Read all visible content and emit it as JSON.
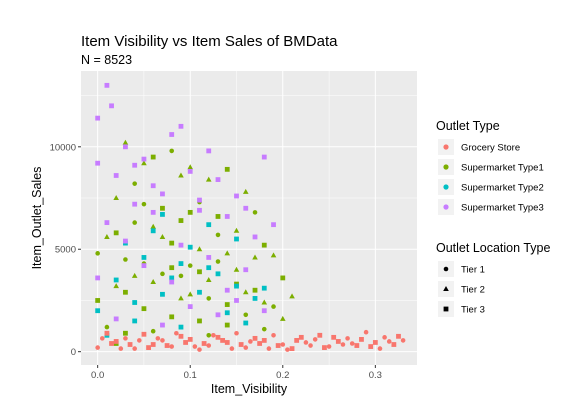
{
  "chart_data": {
    "type": "scatter",
    "title": "Item Visibility vs Item Sales of BMData",
    "subtitle": "N = 8523",
    "xlabel": "Item_Visibility",
    "ylabel": "Item_Outlet_Sales",
    "xlim": [
      -0.018,
      0.345
    ],
    "ylim": [
      -650,
      13700
    ],
    "x_ticks": [
      0.0,
      0.1,
      0.2,
      0.3
    ],
    "x_tick_labels": [
      "0.0",
      "0.1",
      "0.2",
      "0.3"
    ],
    "y_ticks": [
      0,
      5000,
      10000
    ],
    "y_tick_labels": [
      "0",
      "5000",
      "10000"
    ],
    "grid": true,
    "background": "#ebebeb",
    "legend_position": "right",
    "legends": [
      {
        "title": "Outlet Type",
        "kind": "color",
        "entries": [
          {
            "label": "Grocery Store",
            "color": "#F8766D"
          },
          {
            "label": "Supermarket Type1",
            "color": "#7CAE00"
          },
          {
            "label": "Supermarket Type2",
            "color": "#00BFC4"
          },
          {
            "label": "Supermarket Type3",
            "color": "#C77CFF"
          }
        ]
      },
      {
        "title": "Outlet Location Type",
        "kind": "shape",
        "entries": [
          {
            "label": "Tier 1",
            "shape": "circle"
          },
          {
            "label": "Tier 2",
            "shape": "triangle"
          },
          {
            "label": "Tier 3",
            "shape": "square"
          }
        ]
      }
    ],
    "series": [
      {
        "outlet_type": "Supermarket Type1",
        "points": [
          [
            0.02,
            3200,
            2
          ],
          [
            0.03,
            4500,
            1
          ],
          [
            0.05,
            2100,
            3
          ],
          [
            0.06,
            6100,
            2
          ],
          [
            0.07,
            3800,
            1
          ],
          [
            0.08,
            5300,
            3
          ],
          [
            0.09,
            2600,
            2
          ],
          [
            0.1,
            4200,
            1
          ],
          [
            0.11,
            1500,
            3
          ],
          [
            0.12,
            3500,
            2
          ],
          [
            0.13,
            5700,
            1
          ],
          [
            0.14,
            2300,
            3
          ],
          [
            0.15,
            4000,
            2
          ],
          [
            0.16,
            1800,
            1
          ],
          [
            0.17,
            3000,
            3
          ],
          [
            0.18,
            2400,
            2
          ],
          [
            0.01,
            1200,
            1
          ],
          [
            0.03,
            900,
            3
          ],
          [
            0.04,
            3700,
            2
          ],
          [
            0.06,
            1000,
            1
          ],
          [
            0.08,
            1700,
            3
          ],
          [
            0.1,
            2800,
            2
          ],
          [
            0.12,
            800,
            1
          ],
          [
            0.14,
            1300,
            3
          ],
          [
            0.16,
            2900,
            2
          ],
          [
            0.18,
            1100,
            1
          ],
          [
            0.02,
            7500,
            2
          ],
          [
            0.04,
            8200,
            1
          ],
          [
            0.05,
            9200,
            2
          ],
          [
            0.07,
            7000,
            3
          ],
          [
            0.09,
            8600,
            2
          ],
          [
            0.11,
            7300,
            1
          ],
          [
            0.13,
            6600,
            3
          ],
          [
            0.15,
            5900,
            2
          ],
          [
            0.17,
            6800,
            1
          ],
          [
            0.19,
            4700,
            2
          ],
          [
            0.03,
            10200,
            2
          ],
          [
            0.06,
            9500,
            3
          ],
          [
            0.08,
            9800,
            1
          ],
          [
            0.12,
            8400,
            2
          ],
          [
            0.14,
            8900,
            3
          ],
          [
            0.16,
            7800,
            2
          ],
          [
            0.0,
            4800,
            1
          ],
          [
            0.0,
            2500,
            3
          ],
          [
            0.01,
            5600,
            2
          ],
          [
            0.02,
            400,
            3
          ],
          [
            0.05,
            4300,
            1
          ],
          [
            0.09,
            6400,
            3
          ],
          [
            0.11,
            5000,
            2
          ],
          [
            0.13,
            4400,
            1
          ],
          [
            0.15,
            3300,
            3
          ],
          [
            0.17,
            4600,
            2
          ],
          [
            0.19,
            2200,
            1
          ],
          [
            0.2,
            3600,
            3
          ],
          [
            0.21,
            2700,
            2
          ],
          [
            0.07,
            5600,
            2
          ],
          [
            0.1,
            6800,
            3
          ],
          [
            0.04,
            6300,
            1
          ],
          [
            0.06,
            3400,
            2
          ],
          [
            0.08,
            4100,
            3
          ],
          [
            0.12,
            2600,
            1
          ],
          [
            0.14,
            4800,
            2
          ],
          [
            0.18,
            5200,
            3
          ],
          [
            0.2,
            1600,
            2
          ],
          [
            0.03,
            2900,
            3
          ],
          [
            0.05,
            7200,
            1
          ],
          [
            0.1,
            9000,
            2
          ],
          [
            0.02,
            5800,
            3
          ],
          [
            0.09,
            3700,
            1
          ],
          [
            0.11,
            3900,
            3
          ]
        ]
      },
      {
        "outlet_type": "Supermarket Type2",
        "points": [
          [
            0.0,
            2000,
            3
          ],
          [
            0.02,
            3500,
            3
          ],
          [
            0.04,
            1500,
            3
          ],
          [
            0.05,
            4600,
            3
          ],
          [
            0.07,
            2800,
            3
          ],
          [
            0.08,
            3600,
            3
          ],
          [
            0.09,
            1200,
            3
          ],
          [
            0.11,
            2900,
            3
          ],
          [
            0.12,
            4100,
            3
          ],
          [
            0.14,
            1900,
            3
          ],
          [
            0.15,
            3200,
            3
          ],
          [
            0.17,
            2600,
            3
          ],
          [
            0.03,
            5300,
            3
          ],
          [
            0.06,
            5900,
            3
          ],
          [
            0.1,
            5100,
            3
          ],
          [
            0.13,
            3800,
            3
          ],
          [
            0.16,
            1400,
            3
          ],
          [
            0.18,
            3100,
            3
          ],
          [
            0.01,
            800,
            3
          ],
          [
            0.07,
            6700,
            3
          ],
          [
            0.12,
            6200,
            3
          ],
          [
            0.15,
            5500,
            3
          ],
          [
            0.04,
            2400,
            3
          ],
          [
            0.09,
            4300,
            3
          ]
        ]
      },
      {
        "outlet_type": "Supermarket Type3",
        "points": [
          [
            0.0,
            11400,
            3
          ],
          [
            0.01,
            13000,
            3
          ],
          [
            0.015,
            12000,
            3
          ],
          [
            0.03,
            10000,
            3
          ],
          [
            0.05,
            9400,
            3
          ],
          [
            0.08,
            10600,
            3
          ],
          [
            0.1,
            8800,
            3
          ],
          [
            0.09,
            11000,
            3
          ],
          [
            0.13,
            8400,
            3
          ],
          [
            0.15,
            7600,
            3
          ],
          [
            0.18,
            9500,
            3
          ],
          [
            0.12,
            9800,
            3
          ],
          [
            0.02,
            8600,
            3
          ],
          [
            0.0,
            9200,
            3
          ],
          [
            0.06,
            8100,
            3
          ],
          [
            0.04,
            7200,
            3
          ],
          [
            0.07,
            7700,
            3
          ],
          [
            0.11,
            6900,
            3
          ],
          [
            0.14,
            6600,
            3
          ],
          [
            0.16,
            7000,
            3
          ],
          [
            0.19,
            6200,
            3
          ],
          [
            0.17,
            5600,
            3
          ],
          [
            0.01,
            6300,
            3
          ],
          [
            0.03,
            5400,
            3
          ],
          [
            0.05,
            4200,
            3
          ],
          [
            0.08,
            3400,
            3
          ],
          [
            0.1,
            2200,
            3
          ],
          [
            0.12,
            4600,
            3
          ],
          [
            0.14,
            3000,
            3
          ],
          [
            0.16,
            4000,
            3
          ],
          [
            0.18,
            2000,
            3
          ],
          [
            0.02,
            1600,
            3
          ],
          [
            0.0,
            3600,
            3
          ],
          [
            0.07,
            1300,
            3
          ],
          [
            0.09,
            5200,
            3
          ],
          [
            0.13,
            1800,
            3
          ],
          [
            0.15,
            2500,
            3
          ],
          [
            0.11,
            7400,
            3
          ],
          [
            0.06,
            6800,
            3
          ],
          [
            0.04,
            9100,
            3
          ]
        ]
      },
      {
        "outlet_type": "Grocery Store",
        "points": [
          [
            0.0,
            200,
            1
          ],
          [
            0.02,
            500,
            3
          ],
          [
            0.04,
            150,
            1
          ],
          [
            0.06,
            350,
            3
          ],
          [
            0.08,
            250,
            1
          ],
          [
            0.1,
            600,
            3
          ],
          [
            0.12,
            300,
            1
          ],
          [
            0.14,
            450,
            3
          ],
          [
            0.16,
            200,
            1
          ],
          [
            0.18,
            550,
            3
          ],
          [
            0.2,
            350,
            1
          ],
          [
            0.22,
            700,
            3
          ],
          [
            0.23,
            300,
            1
          ],
          [
            0.24,
            800,
            3
          ],
          [
            0.25,
            250,
            1
          ],
          [
            0.26,
            500,
            3
          ],
          [
            0.27,
            650,
            1
          ],
          [
            0.28,
            300,
            3
          ],
          [
            0.29,
            950,
            1
          ],
          [
            0.3,
            450,
            3
          ],
          [
            0.31,
            700,
            1
          ],
          [
            0.32,
            350,
            3
          ],
          [
            0.33,
            550,
            1
          ],
          [
            0.21,
            150,
            3
          ],
          [
            0.19,
            800,
            1
          ],
          [
            0.17,
            650,
            3
          ],
          [
            0.15,
            900,
            1
          ],
          [
            0.13,
            700,
            3
          ],
          [
            0.11,
            100,
            1
          ],
          [
            0.09,
            750,
            3
          ],
          [
            0.07,
            550,
            1
          ],
          [
            0.05,
            850,
            3
          ],
          [
            0.03,
            650,
            1
          ],
          [
            0.01,
            900,
            3
          ],
          [
            0.225,
            450,
            1
          ],
          [
            0.245,
            200,
            3
          ],
          [
            0.265,
            350,
            1
          ],
          [
            0.285,
            600,
            3
          ],
          [
            0.305,
            150,
            1
          ],
          [
            0.325,
            750,
            3
          ],
          [
            0.235,
            600,
            1
          ],
          [
            0.255,
            700,
            3
          ],
          [
            0.275,
            400,
            1
          ],
          [
            0.295,
            250,
            3
          ],
          [
            0.315,
            500,
            1
          ],
          [
            0.215,
            550,
            3
          ],
          [
            0.205,
            100,
            1
          ],
          [
            0.195,
            300,
            3
          ],
          [
            0.185,
            150,
            1
          ],
          [
            0.175,
            400,
            3
          ],
          [
            0.165,
            500,
            1
          ],
          [
            0.155,
            350,
            3
          ],
          [
            0.145,
            150,
            1
          ],
          [
            0.135,
            550,
            3
          ],
          [
            0.125,
            800,
            1
          ],
          [
            0.115,
            400,
            3
          ],
          [
            0.105,
            250,
            1
          ],
          [
            0.095,
            450,
            3
          ],
          [
            0.085,
            900,
            1
          ],
          [
            0.075,
            300,
            3
          ],
          [
            0.065,
            650,
            1
          ],
          [
            0.055,
            200,
            3
          ],
          [
            0.045,
            550,
            1
          ],
          [
            0.035,
            350,
            3
          ],
          [
            0.025,
            150,
            1
          ],
          [
            0.015,
            400,
            3
          ],
          [
            0.005,
            650,
            1
          ]
        ]
      }
    ]
  }
}
